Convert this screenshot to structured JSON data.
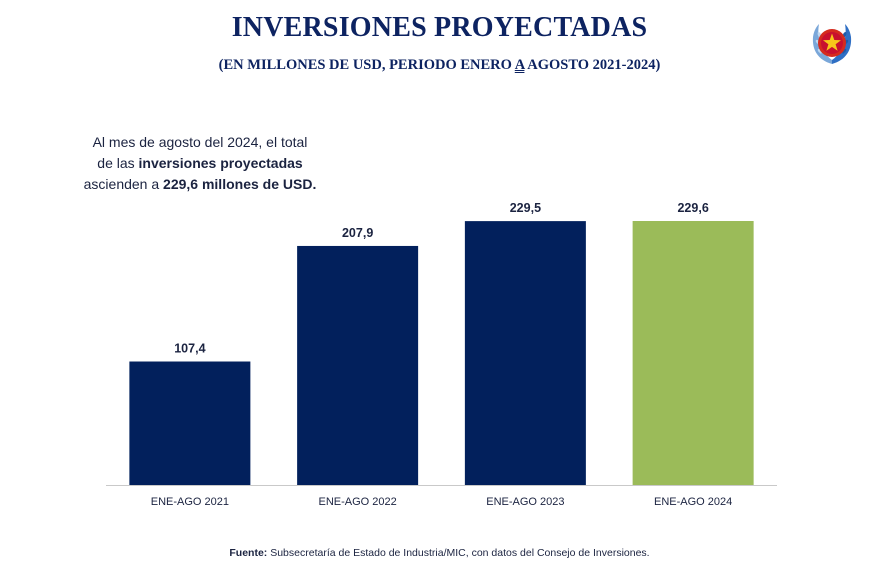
{
  "header": {
    "title": "INVERSIONES PROYECTADAS",
    "subtitle_before": "(EN MILLONES DE USD, PERIODO ENERO ",
    "subtitle_mark": "A",
    "subtitle_after": " AGOSTO 2021-2024)"
  },
  "note": {
    "line1": "Al mes de agosto del 2024, el total",
    "line2_pre": "de las ",
    "line2_bold": "inversiones proyectadas",
    "line3_pre": "ascienden a ",
    "line3_bold": "229,6 millones de USD."
  },
  "source": {
    "label": "Fuente:",
    "text": " Subsecretaría de Estado de Industria/MIC, con datos del Consejo de Inversiones."
  },
  "colors": {
    "title": "#0d2361",
    "bar_primary": "#02205c",
    "bar_highlight": "#9bbb59",
    "axis": "#c9c9c9"
  },
  "chart_data": {
    "type": "bar",
    "categories": [
      "ENE-AGO 2021",
      "ENE-AGO 2022",
      "ENE-AGO 2023",
      "ENE-AGO 2024"
    ],
    "values": [
      107.4,
      207.9,
      229.5,
      229.6
    ],
    "data_labels": [
      "107,4",
      "207,9",
      "229,5",
      "229,6"
    ],
    "highlight_index": 3,
    "title": "INVERSIONES PROYECTADAS",
    "xlabel": "",
    "ylabel": "",
    "ylim": [
      0,
      229.6
    ],
    "grid": false,
    "legend": "none"
  }
}
